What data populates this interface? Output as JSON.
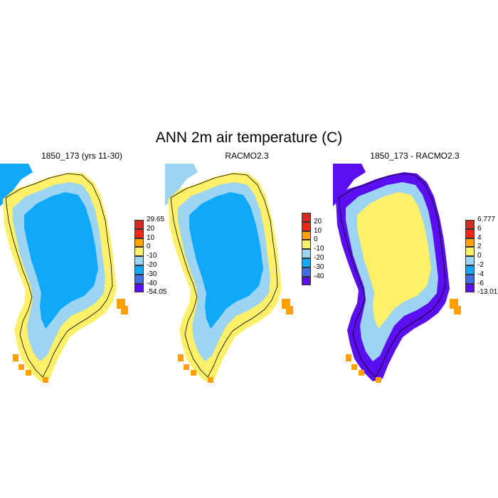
{
  "figure": {
    "title": "ANN 2m air temperature (C)"
  },
  "panels": [
    {
      "title": "1850_173 (yrs 11-30)",
      "colorbar": {
        "colors": [
          "#5a0ff0",
          "#3f6fe0",
          "#10a8f8",
          "#9dd4f2",
          "#fff06a",
          "#ff9f00",
          "#f42514",
          "#d42a24"
        ],
        "labels": [
          "-54.05",
          "-40",
          "-30",
          "-20",
          "-10",
          "0",
          "10",
          "20",
          "29.65"
        ],
        "end_labels": true
      },
      "palette": {
        "deep": "#10a8f8",
        "mid": "#9dd4f2",
        "edge": "#fff06a",
        "warm": "#ff9f00",
        "ocean": "#10a8f8"
      }
    },
    {
      "title": "RACMO2.3",
      "colorbar": {
        "colors": [
          "#5a0ff0",
          "#3f6fe0",
          "#10a8f8",
          "#9dd4f2",
          "#fff06a",
          "#ff9f00",
          "#f42514",
          "#d42a24"
        ],
        "labels": [
          "-40",
          "-30",
          "-20",
          "-10",
          "0",
          "10",
          "20"
        ],
        "end_labels": false
      },
      "palette": {
        "deep": "#10a8f8",
        "mid": "#9dd4f2",
        "edge": "#fff06a",
        "warm": "#ff9f00",
        "ocean": "#9dd4f2"
      }
    },
    {
      "title": "1850_173 - RACMO2.3",
      "colorbar": {
        "colors": [
          "#5a0ff0",
          "#3f6fe0",
          "#10a8f8",
          "#9dd4f2",
          "#fff06a",
          "#ff9f00",
          "#f42514",
          "#d42a24"
        ],
        "labels": [
          "-13.017",
          "-6",
          "-4",
          "-2",
          "0",
          "2",
          "4",
          "6",
          "6.777"
        ],
        "end_labels": true
      },
      "palette": {
        "deep": "#fff06a",
        "mid": "#9dd4f2",
        "edge": "#5a0ff0",
        "warm": "#ff9f00",
        "ocean": "#5a0ff0"
      }
    }
  ]
}
